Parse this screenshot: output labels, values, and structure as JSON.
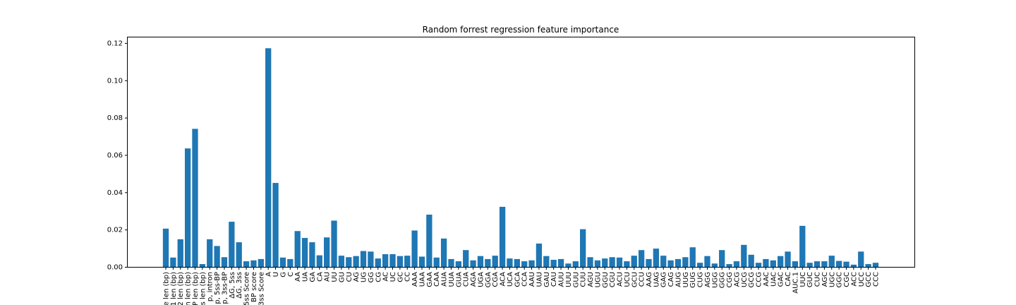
{
  "chart_data": {
    "type": "bar",
    "title": "Random forrest regression feature importance",
    "xlabel": "",
    "ylabel": "",
    "ylim": [
      0,
      0.123
    ],
    "yticks": [
      "0.00",
      "0.02",
      "0.04",
      "0.06",
      "0.08",
      "0.10",
      "0.12"
    ],
    "grid": false,
    "bar_color": "#1f77b4",
    "categories": [
      "e len (bp)",
      "1 len (bp)",
      "2 len (bp)",
      "n len (bp)",
      "P len (bp)",
      "s len (bp)",
      "p, intron",
      "p, 5ss-BP",
      "p, 3ss-BP",
      "ΔG, 5ss",
      "ΔG, 3ss",
      "5ss Score",
      "BP score",
      "3ss Score",
      "A",
      "U",
      "G",
      "C",
      "AA",
      "UA",
      "GA",
      "CA",
      "AU",
      "UU",
      "GU",
      "CU",
      "AG",
      "UG",
      "GG",
      "CG",
      "AC",
      "UC",
      "GC",
      "CC",
      "AAA",
      "UAA",
      "GAA",
      "CAA",
      "AUA",
      "UUA",
      "GUA",
      "CUA",
      "AGA",
      "UGA",
      "GGA",
      "CGA",
      "ACA",
      "UCA",
      "GCA",
      "CCA",
      "AAU",
      "UAU",
      "GAU",
      "CAU",
      "AUU",
      "UUU",
      "GUU",
      "CUU",
      "AGU",
      "UGU",
      "GGU",
      "CGU",
      "ACU",
      "UCU",
      "GCU",
      "CCU",
      "AAG",
      "UAG",
      "GAG",
      "CAG",
      "AUG",
      "UUG",
      "GUG",
      "CUG",
      "AGG",
      "UGG",
      "GGG",
      "CGG",
      "ACG",
      "UCG",
      "GCG",
      "CCG",
      "AAC",
      "UAC",
      "GAC",
      "CAC",
      "AUC.1",
      "UUC",
      "GUC",
      "CUC",
      "AGC",
      "UGC",
      "GGC",
      "CGC",
      "ACC",
      "UCC",
      "GCC",
      "CCC"
    ],
    "values": [
      0.0205,
      0.005,
      0.0148,
      0.0635,
      0.074,
      0.0015,
      0.0148,
      0.0112,
      0.0052,
      0.0242,
      0.0132,
      0.003,
      0.0035,
      0.0042,
      0.1172,
      0.045,
      0.005,
      0.0042,
      0.0192,
      0.0155,
      0.0132,
      0.0062,
      0.0158,
      0.0248,
      0.006,
      0.0052,
      0.0058,
      0.0085,
      0.0082,
      0.0045,
      0.0068,
      0.0068,
      0.0058,
      0.006,
      0.0195,
      0.0055,
      0.028,
      0.005,
      0.0152,
      0.0042,
      0.003,
      0.009,
      0.0035,
      0.0058,
      0.0042,
      0.006,
      0.0322,
      0.0045,
      0.0042,
      0.003,
      0.0035,
      0.0125,
      0.0058,
      0.0038,
      0.0042,
      0.0018,
      0.003,
      0.0202,
      0.0052,
      0.0035,
      0.0045,
      0.0052,
      0.005,
      0.003,
      0.006,
      0.009,
      0.0042,
      0.0098,
      0.006,
      0.0035,
      0.0042,
      0.0052,
      0.0105,
      0.0022,
      0.0058,
      0.0018,
      0.009,
      0.0015,
      0.003,
      0.0118,
      0.0065,
      0.0022,
      0.0042,
      0.0035,
      0.0058,
      0.0082,
      0.003,
      0.022,
      0.0022,
      0.003,
      0.003,
      0.006,
      0.0032,
      0.0028,
      0.0012,
      0.0082,
      0.0015,
      0.0022
    ]
  }
}
